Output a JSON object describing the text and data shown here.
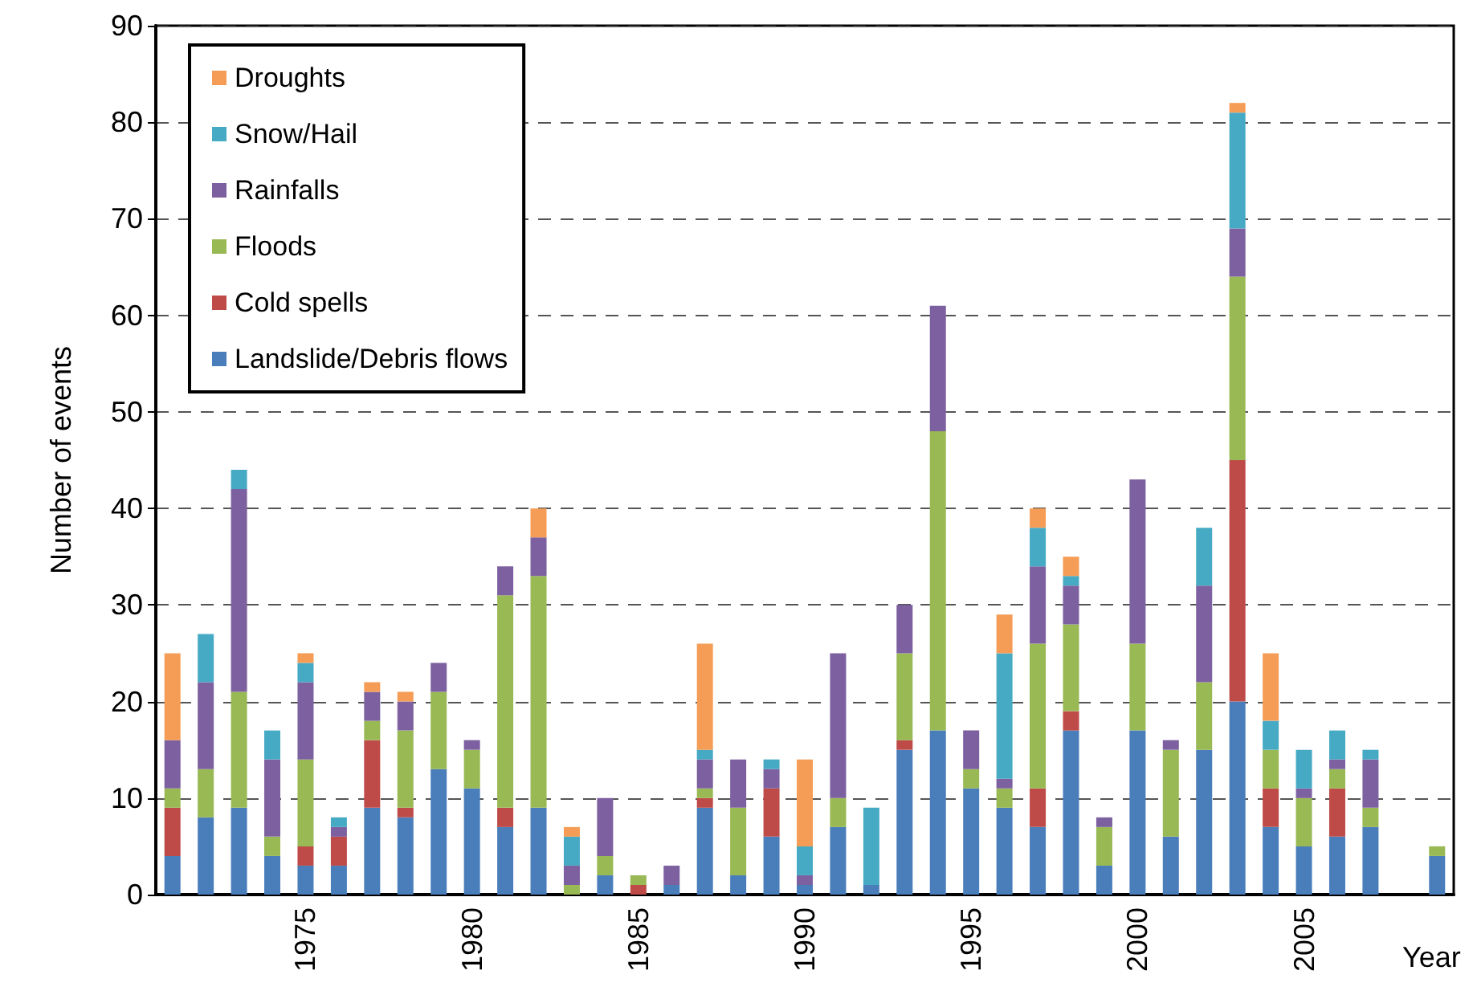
{
  "chart_data": {
    "type": "bar",
    "xlabel": "Year",
    "ylabel": "Number of events",
    "x": [
      1971,
      1972,
      1973,
      1974,
      1975,
      1976,
      1977,
      1978,
      1979,
      1980,
      1981,
      1982,
      1983,
      1984,
      1985,
      1986,
      1987,
      1988,
      1989,
      1990,
      1991,
      1992,
      1993,
      1994,
      1995,
      1996,
      1997,
      1998,
      1999,
      2000,
      2001,
      2002,
      2003,
      2004,
      2005,
      2006,
      2007,
      2008,
      2009
    ],
    "stacked": true,
    "series": [
      {
        "name": "Landslide/Debris flows",
        "color": "#4a7ebb",
        "values": [
          4,
          8,
          9,
          4,
          3,
          3,
          9,
          8,
          13,
          11,
          7,
          9,
          0,
          2,
          0,
          1,
          9,
          2,
          6,
          1,
          7,
          1,
          15,
          17,
          11,
          9,
          7,
          17,
          3,
          17,
          6,
          15,
          20,
          7,
          5,
          6,
          7,
          0,
          4
        ]
      },
      {
        "name": "Cold spells",
        "color": "#be4b48",
        "values": [
          5,
          0,
          0,
          0,
          2,
          3,
          7,
          1,
          0,
          0,
          2,
          0,
          0,
          0,
          1,
          0,
          1,
          0,
          5,
          0,
          0,
          0,
          1,
          0,
          0,
          0,
          4,
          2,
          0,
          0,
          0,
          0,
          25,
          4,
          0,
          5,
          0,
          0,
          0
        ]
      },
      {
        "name": "Floods",
        "color": "#98b954",
        "values": [
          2,
          5,
          12,
          2,
          9,
          0,
          2,
          8,
          8,
          4,
          22,
          24,
          1,
          2,
          1,
          0,
          1,
          7,
          0,
          0,
          3,
          0,
          9,
          31,
          2,
          2,
          15,
          9,
          4,
          9,
          9,
          7,
          19,
          4,
          5,
          2,
          2,
          0,
          1
        ]
      },
      {
        "name": "Rainfalls",
        "color": "#7d60a0",
        "values": [
          5,
          9,
          21,
          8,
          8,
          1,
          3,
          3,
          3,
          1,
          3,
          4,
          2,
          6,
          0,
          2,
          3,
          5,
          2,
          1,
          15,
          0,
          5,
          13,
          4,
          1,
          8,
          4,
          1,
          17,
          1,
          10,
          5,
          0,
          1,
          1,
          5,
          0,
          0
        ]
      },
      {
        "name": "Snow/Hail",
        "color": "#46aac5",
        "values": [
          0,
          5,
          2,
          3,
          2,
          1,
          0,
          0,
          0,
          0,
          0,
          0,
          3,
          0,
          0,
          0,
          1,
          0,
          1,
          3,
          0,
          8,
          0,
          0,
          0,
          13,
          4,
          1,
          0,
          0,
          0,
          6,
          12,
          3,
          4,
          3,
          1,
          0,
          0
        ]
      },
      {
        "name": "Droughts",
        "color": "#f59d56",
        "values": [
          9,
          0,
          0,
          0,
          1,
          0,
          1,
          1,
          0,
          0,
          0,
          3,
          1,
          0,
          0,
          0,
          11,
          0,
          0,
          9,
          0,
          0,
          0,
          0,
          0,
          4,
          2,
          2,
          0,
          0,
          0,
          0,
          1,
          7,
          0,
          0,
          0,
          0,
          0
        ]
      }
    ],
    "xlim": [
      1970.5,
      2009.5
    ],
    "xticks": [
      1975,
      1980,
      1985,
      1990,
      1995,
      2000,
      2005
    ],
    "ylim": [
      0,
      90
    ],
    "yticks": [
      0,
      10,
      20,
      30,
      40,
      50,
      60,
      70,
      80,
      90
    ],
    "grid": "y",
    "legend": "top left"
  }
}
